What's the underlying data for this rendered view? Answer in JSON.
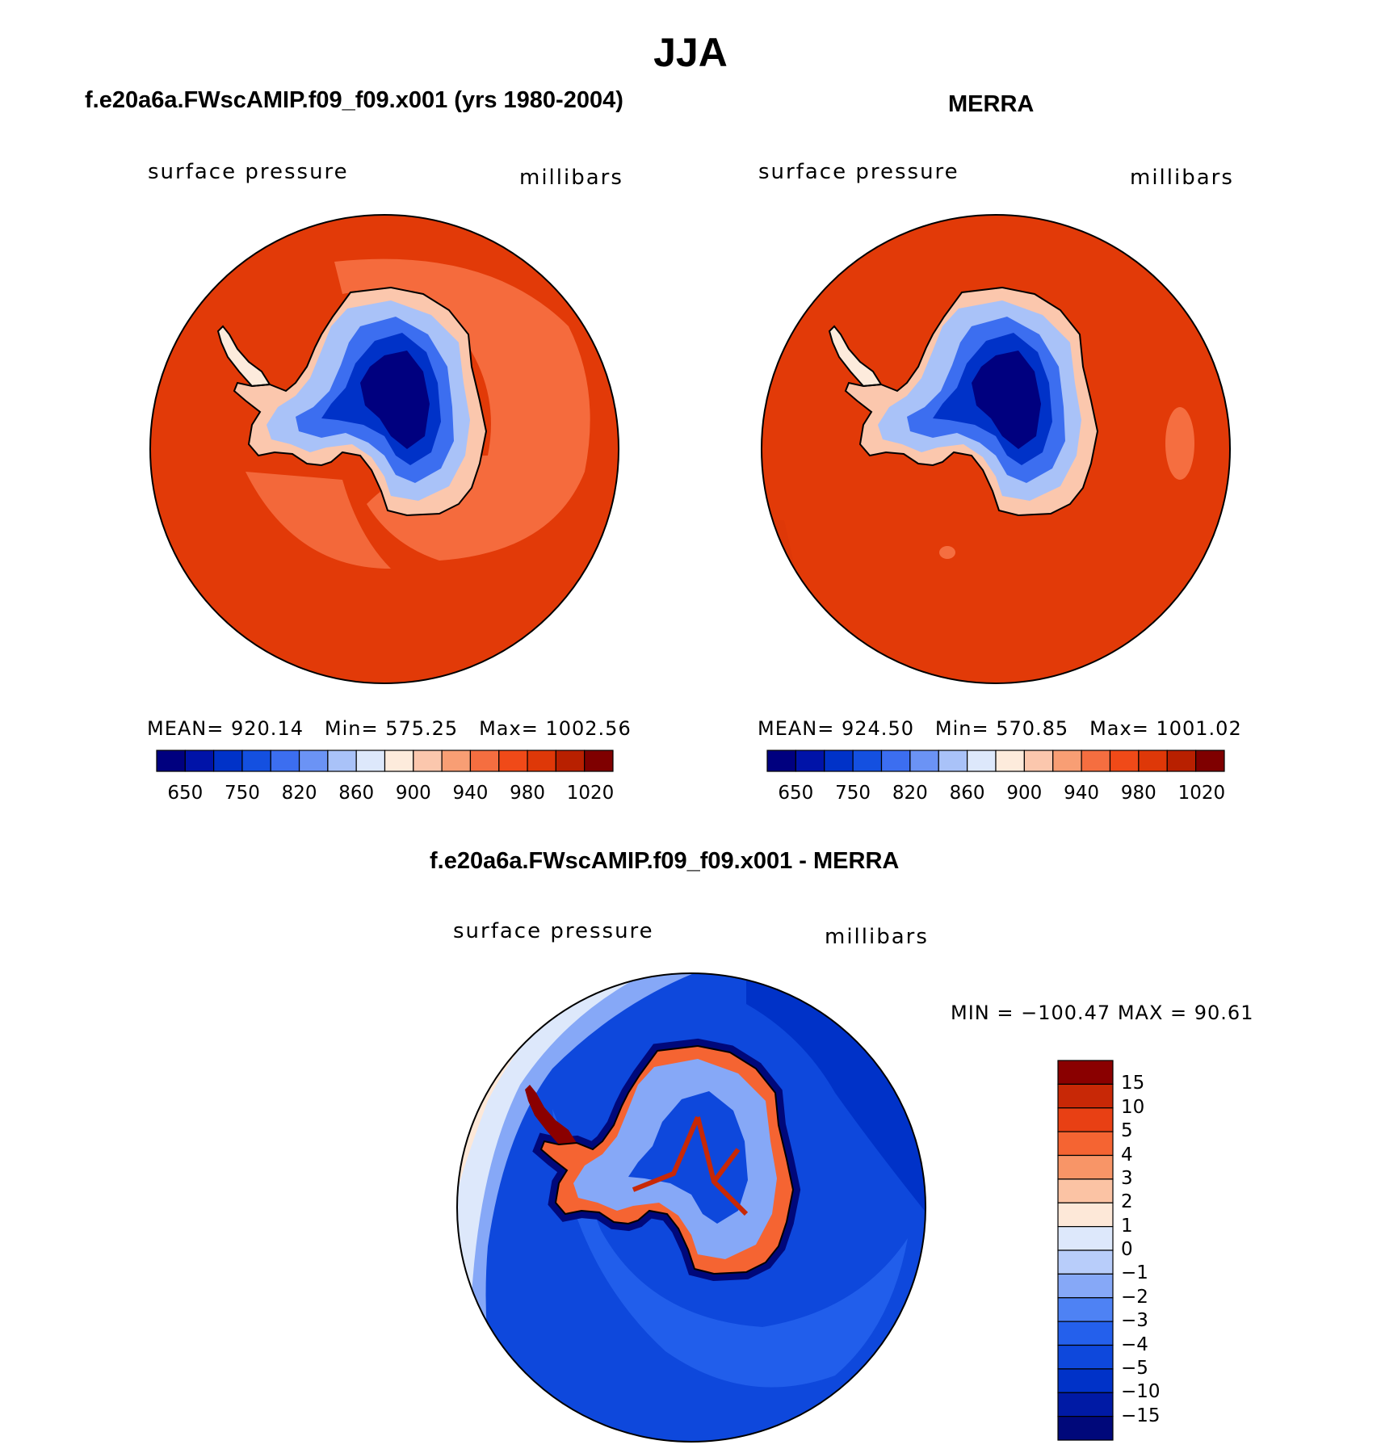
{
  "season_title": "JJA",
  "colors": {
    "abs_palette": [
      "#00007f",
      "#0013a8",
      "#0032c8",
      "#1450e0",
      "#3c6ef0",
      "#6b93f5",
      "#a9c2f8",
      "#dde8fb",
      "#fdebdc",
      "#fbc7ad",
      "#f89e74",
      "#f56e40",
      "#f04a18",
      "#de3808",
      "#b82000",
      "#7f0000"
    ],
    "diff_palette": [
      "#00087a",
      "#001aa5",
      "#0032c8",
      "#0e48dc",
      "#2460ec",
      "#4e82f4",
      "#86a8f7",
      "#b8cdfa",
      "#dde8fb",
      "#fde8d8",
      "#fbc3a4",
      "#f89567",
      "#f56432",
      "#e84014",
      "#c82806",
      "#8a0000"
    ],
    "ocean": "#e23a08",
    "coast": "#000000"
  },
  "panels": [
    {
      "title": "f.e20a6a.FWscAMIP.f09_f09.x001 (yrs 1980-2004)",
      "variable": "surface  pressure",
      "units": "millibars",
      "stats": {
        "mean_label": "MEAN=",
        "mean": "920.14",
        "min_label": "Min=",
        "min": "575.25",
        "max_label": "Max=",
        "max": "1002.56"
      },
      "colorbar_ticks": [
        "650",
        "750",
        "820",
        "860",
        "900",
        "940",
        "980",
        "1020"
      ]
    },
    {
      "title": "MERRA",
      "variable": "surface  pressure",
      "units": "millibars",
      "stats": {
        "mean_label": "MEAN=",
        "mean": "924.50",
        "min_label": "Min=",
        "min": "570.85",
        "max_label": "Max=",
        "max": "1001.02"
      },
      "colorbar_ticks": [
        "650",
        "750",
        "820",
        "860",
        "900",
        "940",
        "980",
        "1020"
      ]
    }
  ],
  "diff_panel": {
    "title": "f.e20a6a.FWscAMIP.f09_f09.x001 - MERRA",
    "variable": "surface  pressure",
    "units": "millibars",
    "minmax": "MIN = −100.47 MAX =   90.61",
    "colorbar_ticks": [
      "15",
      "10",
      "5",
      "4",
      "3",
      "2",
      "1",
      "0",
      "−1",
      "−2",
      "−3",
      "−4",
      "−5",
      "−10",
      "−15"
    ]
  }
}
